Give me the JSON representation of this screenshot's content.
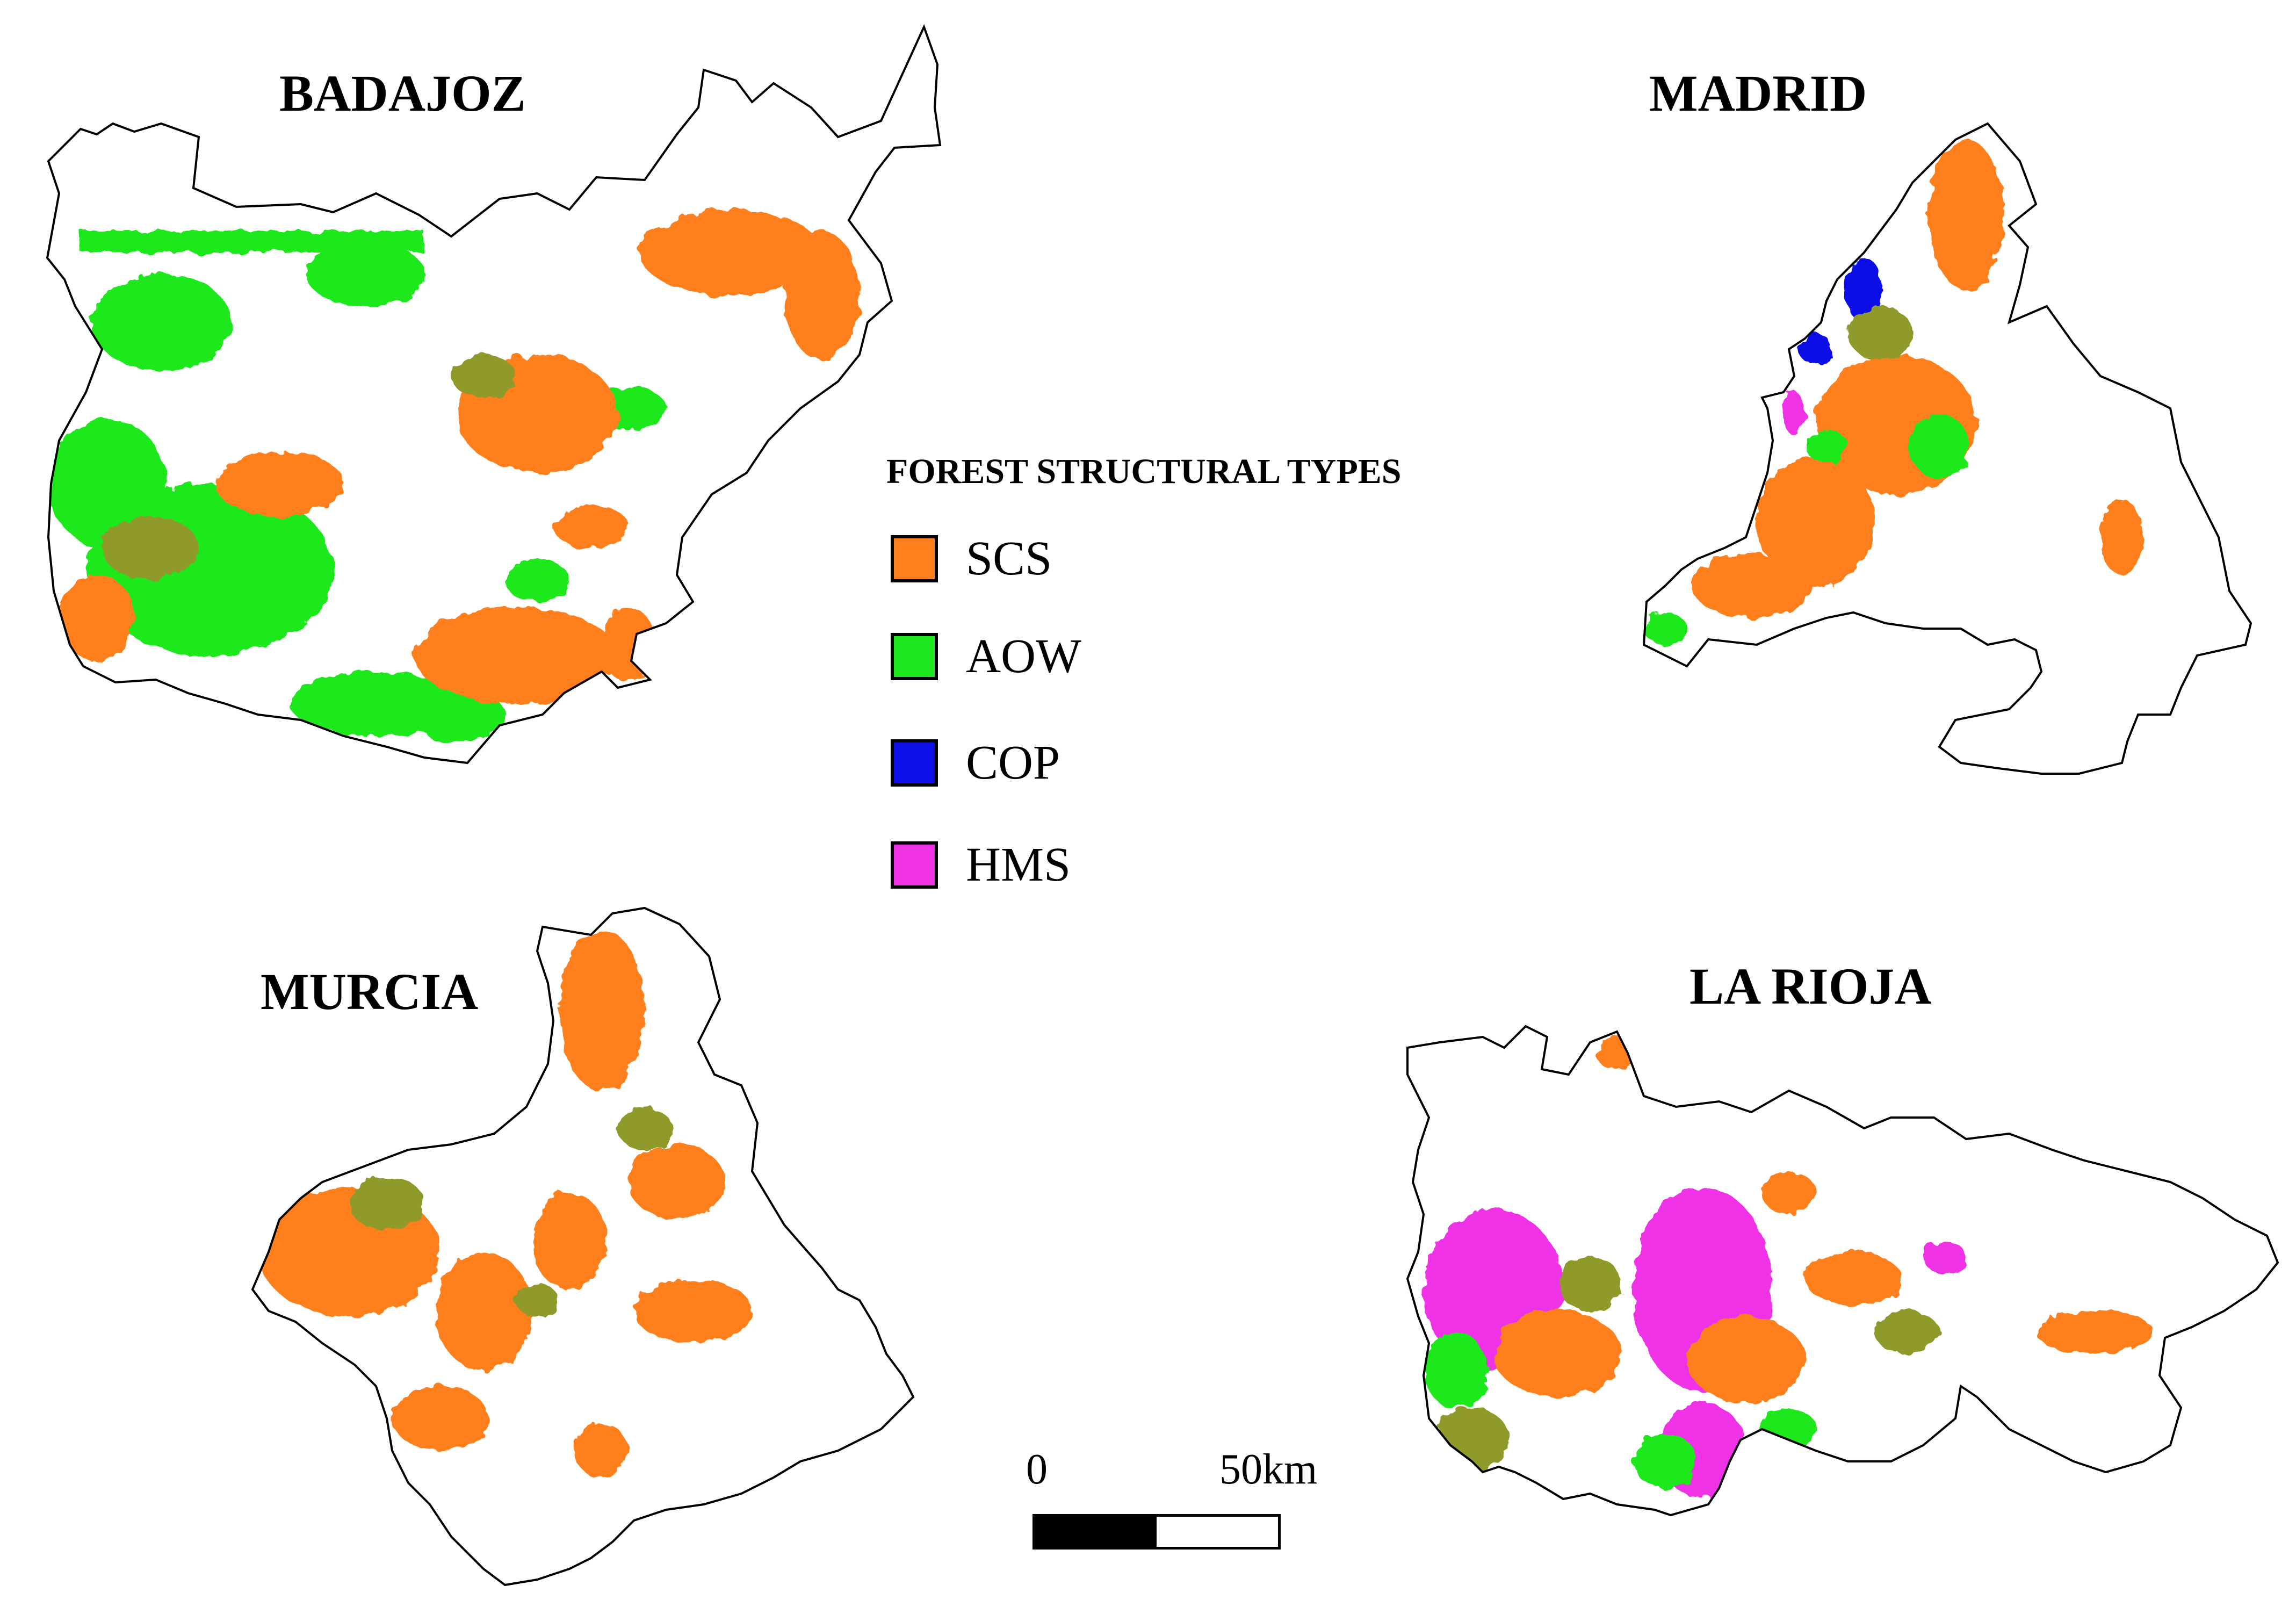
{
  "regions": {
    "badajoz": "BADAJOZ",
    "madrid": "MADRID",
    "murcia": "MURCIA",
    "la_rioja": "LA RIOJA"
  },
  "legend": {
    "title": "FOREST STRUCTURAL TYPES",
    "items": [
      {
        "code": "SCS",
        "color": "#ff7f1a"
      },
      {
        "code": "AOW",
        "color": "#1ee81e"
      },
      {
        "code": "COP",
        "color": "#1010e8"
      },
      {
        "code": "HMS",
        "color": "#f032e6"
      }
    ]
  },
  "scale_bar": {
    "start_label": "0",
    "end_label": "50km"
  },
  "colors": {
    "olive": "#8f9a2a",
    "outline": "#000000"
  }
}
